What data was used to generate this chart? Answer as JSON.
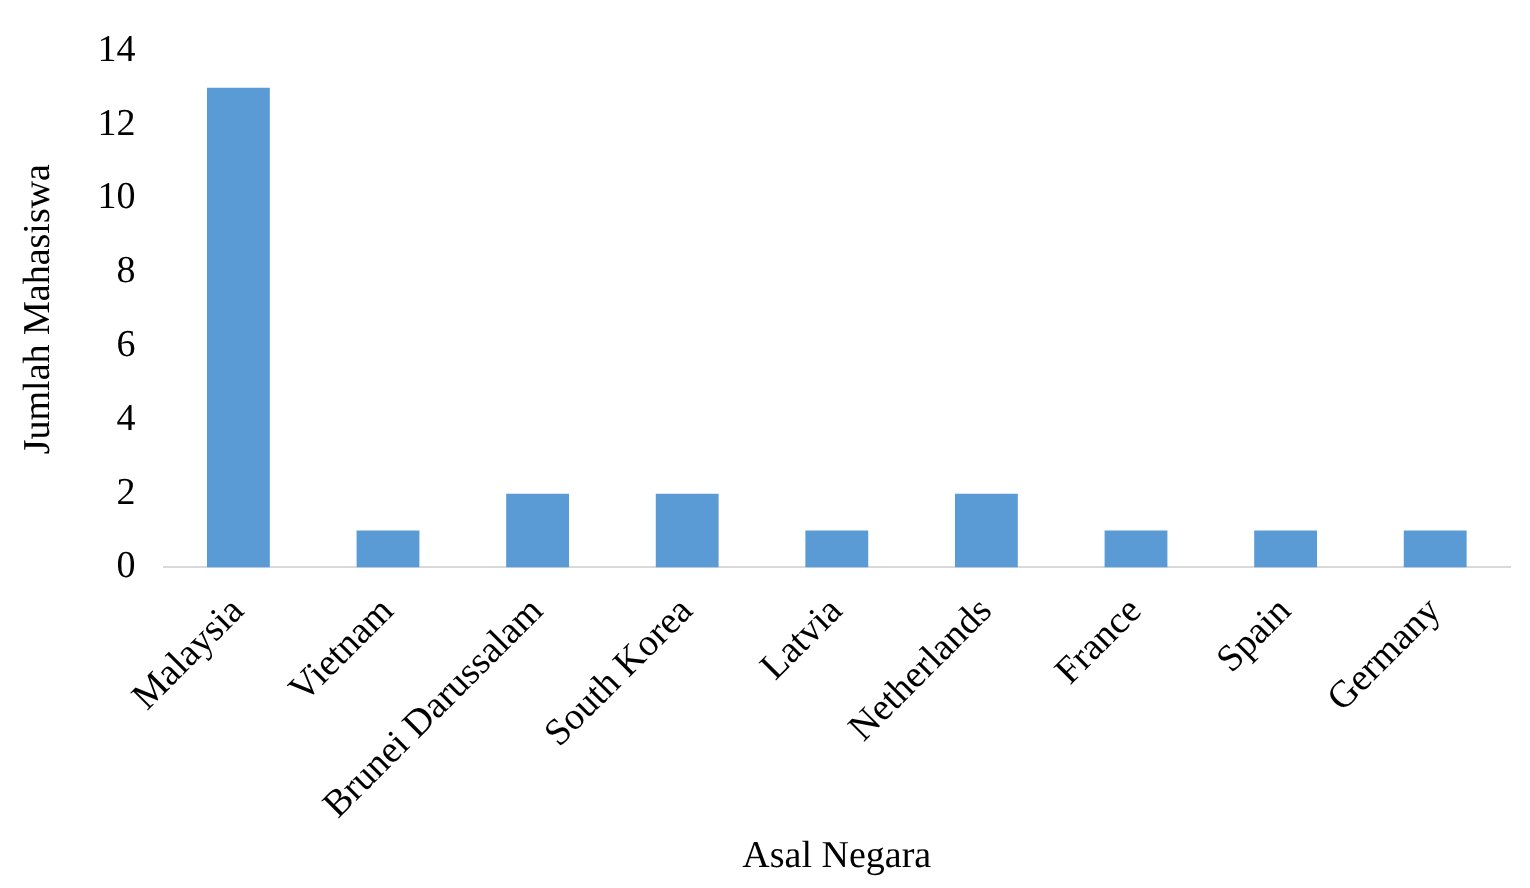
{
  "chart_data": {
    "type": "bar",
    "xlabel": "Asal Negara",
    "ylabel": "Jumlah Mahasiswa",
    "categories": [
      "Malaysia",
      "Vietnam",
      "Brunei Darussalam",
      "South Korea",
      "Latvia",
      "Netherlands",
      "France",
      "Spain",
      "Germany"
    ],
    "values": [
      13,
      1,
      2,
      2,
      1,
      2,
      1,
      1,
      1
    ],
    "color": "#5b9bd5",
    "ylim": [
      0,
      14
    ],
    "yticks": [
      0,
      2,
      4,
      6,
      8,
      10,
      12,
      14
    ],
    "grid": false,
    "legend": false
  }
}
